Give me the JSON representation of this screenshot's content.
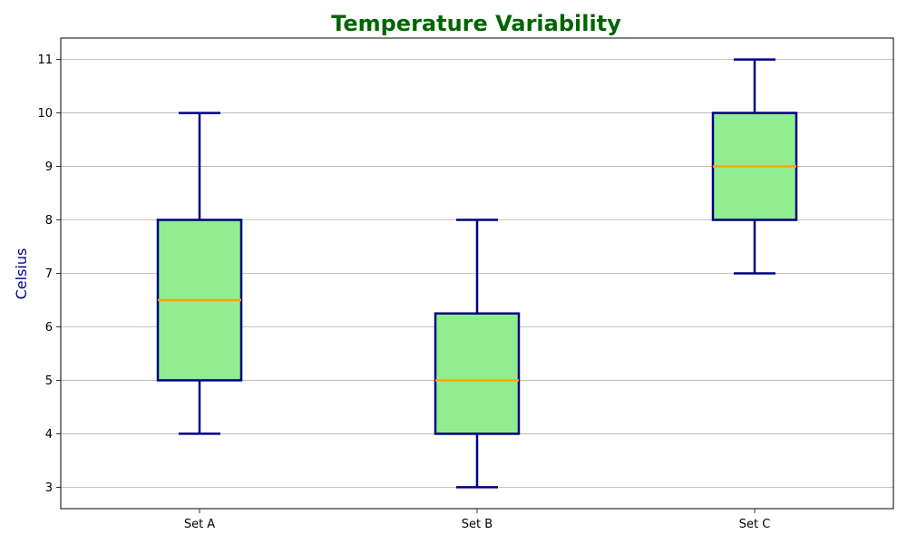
{
  "chart_data": {
    "type": "box",
    "title": "Temperature Variability",
    "xlabel": "",
    "ylabel": "Celsius",
    "categories": [
      "Set A",
      "Set B",
      "Set C"
    ],
    "boxes": [
      {
        "category": "Set A",
        "min": 4,
        "q1": 5,
        "median": 6.5,
        "q3": 8,
        "max": 10
      },
      {
        "category": "Set B",
        "min": 3,
        "q1": 4,
        "median": 5,
        "q3": 6.25,
        "max": 8
      },
      {
        "category": "Set C",
        "min": 7,
        "q1": 8,
        "median": 9,
        "q3": 10,
        "max": 11
      }
    ],
    "yticks": [
      3,
      4,
      5,
      6,
      7,
      8,
      9,
      10,
      11
    ],
    "ylim": [
      2.6,
      11.4
    ],
    "grid": "horizontal",
    "colors": {
      "title": "#006400",
      "ylabel": "#00008b",
      "box_fill": "#90ee90",
      "box_edge": "#000080",
      "whisker": "#000080",
      "median": "#ffa500",
      "grid": "#b0b0b0"
    }
  }
}
